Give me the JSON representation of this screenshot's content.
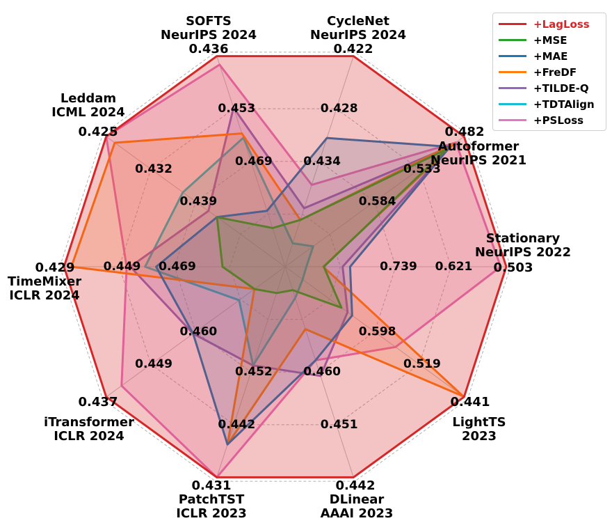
{
  "chart_data": {
    "type": "radar",
    "axes": [
      {
        "name": "SOFTS",
        "venue": "NeurIPS 2024",
        "outer_label": "0.436",
        "ticks": [
          "0.453",
          "0.469"
        ],
        "min": 0.485,
        "max": 0.436
      },
      {
        "name": "CycleNet",
        "venue": "NeurIPS 2024",
        "outer_label": "0.422",
        "ticks": [
          "0.428",
          "0.434"
        ],
        "min": 0.44,
        "max": 0.422
      },
      {
        "name": "Autoformer",
        "venue": "NeurIPS 2021",
        "outer_label": "0.482",
        "ticks": [
          "0.533",
          "0.584"
        ],
        "min": 0.635,
        "max": 0.482
      },
      {
        "name": "Stationary",
        "venue": "NeurIPS 2022",
        "outer_label": "0.503",
        "ticks": [
          "0.621",
          "0.739"
        ],
        "min": 0.857,
        "max": 0.503
      },
      {
        "name": "LightTS",
        "venue": "2023",
        "outer_label": "0.441",
        "ticks": [
          "0.519",
          "0.598"
        ],
        "min": 0.676,
        "max": 0.441
      },
      {
        "name": "DLinear",
        "venue": "AAAI 2023",
        "outer_label": "0.442",
        "ticks": [
          "0.451",
          "0.460"
        ],
        "min": 0.469,
        "max": 0.442
      },
      {
        "name": "PatchTST",
        "venue": "ICLR 2023",
        "outer_label": "0.431",
        "ticks": [
          "0.442",
          "0.452"
        ],
        "min": 0.463,
        "max": 0.431
      },
      {
        "name": "iTransformer",
        "venue": "ICLR 2024",
        "outer_label": "0.437",
        "ticks": [
          "0.449",
          "0.460"
        ],
        "min": 0.472,
        "max": 0.437
      },
      {
        "name": "TimeMixer",
        "venue": "ICLR 2024",
        "outer_label": "0.429",
        "ticks": [
          "0.449",
          "0.469"
        ],
        "min": 0.489,
        "max": 0.429
      },
      {
        "name": "Leddam",
        "venue": "ICML 2024",
        "outer_label": "0.425",
        "ticks": [
          "0.432",
          "0.439"
        ],
        "min": 0.446,
        "max": 0.425
      }
    ],
    "series": [
      {
        "name": "+LagLoss",
        "color": "#d62728",
        "values": [
          0.436,
          0.422,
          0.482,
          0.503,
          0.441,
          0.442,
          0.431,
          0.437,
          0.429,
          0.425
        ]
      },
      {
        "name": "+MSE",
        "color": "#2ca02c",
        "values": [
          0.476,
          0.436,
          0.497,
          0.795,
          0.602,
          0.466,
          0.459,
          0.466,
          0.472,
          0.438
        ]
      },
      {
        "name": "+MAE",
        "color": "#1f77b4",
        "values": [
          0.472,
          0.429,
          0.494,
          0.753,
          0.588,
          0.457,
          0.436,
          0.454,
          0.454,
          0.438
        ]
      },
      {
        "name": "+FreDF",
        "color": "#ff7f0e",
        "values": [
          0.454,
          0.436,
          0.49,
          0.796,
          0.442,
          0.461,
          0.436,
          0.466,
          0.431,
          0.426
        ]
      },
      {
        "name": "+TILDE-Q",
        "color": "#9467bd",
        "values": [
          0.448,
          0.435,
          0.494,
          0.765,
          0.594,
          0.455,
          0.448,
          0.454,
          0.447,
          0.437
        ]
      },
      {
        "name": "+TDTAlign",
        "color": "#17becf",
        "values": [
          0.455,
          0.438,
          0.611,
          0.823,
          0.653,
          0.465,
          0.448,
          0.463,
          0.451,
          0.434
        ]
      },
      {
        "name": "+PSLoss",
        "color": "#e377c2",
        "values": [
          0.438,
          0.433,
          0.489,
          0.512,
          0.531,
          0.457,
          0.431,
          0.44,
          0.446,
          0.425
        ]
      }
    ],
    "legend_placement": "top-right",
    "grid": true
  }
}
